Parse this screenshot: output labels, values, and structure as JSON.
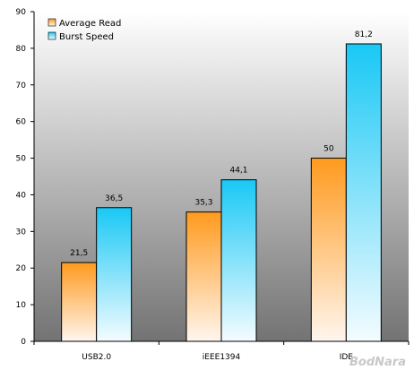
{
  "chart_data": {
    "type": "bar",
    "title": "",
    "xlabel": "",
    "ylabel": "",
    "categories": [
      "USB2.0",
      "iEEE1394",
      "IDE"
    ],
    "series": [
      {
        "name": "Average Read",
        "values": [
          21.5,
          35.3,
          50
        ],
        "labels": [
          "21,5",
          "35,3",
          "50"
        ]
      },
      {
        "name": "Burst Speed",
        "values": [
          36.5,
          44.1,
          81.2
        ],
        "labels": [
          "36,5",
          "44,1",
          "81,2"
        ]
      }
    ],
    "ylim": [
      0,
      90
    ],
    "yticks": [
      0,
      10,
      20,
      30,
      40,
      50,
      60,
      70,
      80,
      90
    ],
    "grid": false,
    "legend_position": "top-left",
    "colors": {
      "average_read_top": "#ff9a1e",
      "average_read_bottom": "#fff6ee",
      "burst_speed_top": "#19c8f5",
      "burst_speed_bottom": "#f4fcff",
      "plot_top": "#ffffff",
      "plot_bottom": "#737373"
    }
  },
  "watermark": "BodNara"
}
